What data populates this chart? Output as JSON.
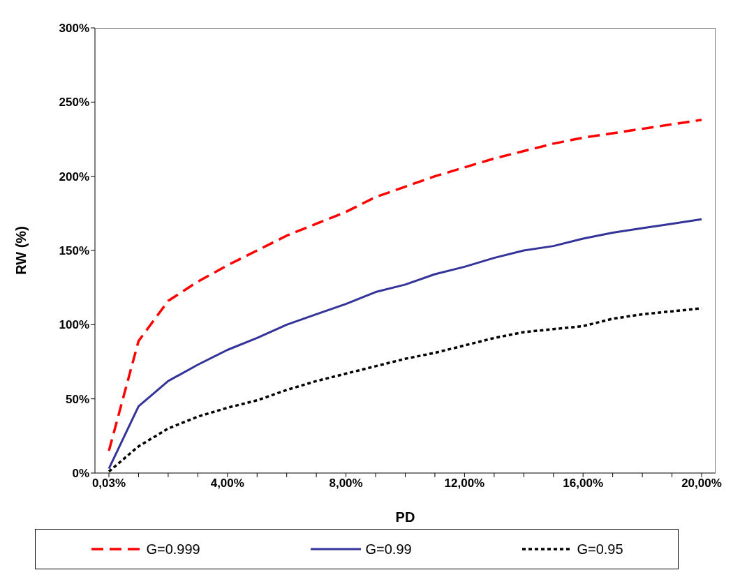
{
  "chart_data": {
    "type": "line",
    "xlabel": "PD",
    "ylabel": "RW (%)",
    "categories": [
      "0,03%",
      null,
      null,
      null,
      "4,00%",
      null,
      null,
      null,
      "8,00%",
      null,
      null,
      null,
      "12,00%",
      null,
      null,
      null,
      "16,00%",
      null,
      null,
      null,
      "20,00%"
    ],
    "series": [
      {
        "name": "G=0.999",
        "color": "#ff0000",
        "line_style": "dashed",
        "values": [
          15,
          89,
          116,
          129,
          140,
          150,
          160,
          168,
          176,
          186,
          193,
          200,
          206,
          212,
          217,
          222,
          226,
          229,
          232,
          235,
          238
        ]
      },
      {
        "name": "G=0.99",
        "color": "#333399",
        "line_style": "solid",
        "values": [
          3,
          45,
          62,
          73,
          83,
          91,
          100,
          107,
          114,
          122,
          127,
          134,
          139,
          145,
          150,
          153,
          158,
          162,
          165,
          168,
          171
        ]
      },
      {
        "name": "G=0.95",
        "color": "#000000",
        "line_style": "dotted",
        "values": [
          1,
          18,
          30,
          38,
          44,
          49,
          56,
          62,
          67,
          72,
          77,
          81,
          86,
          91,
          95,
          97,
          99,
          104,
          107,
          109,
          111
        ]
      }
    ],
    "ylim": [
      0,
      300
    ],
    "yticks": [
      {
        "value": 0,
        "label": "0%"
      },
      {
        "value": 50,
        "label": "50%"
      },
      {
        "value": 100,
        "label": "100%"
      },
      {
        "value": 150,
        "label": "150%"
      },
      {
        "value": 200,
        "label": "200%"
      },
      {
        "value": 250,
        "label": "250%"
      },
      {
        "value": 300,
        "label": "300%"
      }
    ],
    "grid": false,
    "legend": "bottom",
    "marker": "none"
  }
}
